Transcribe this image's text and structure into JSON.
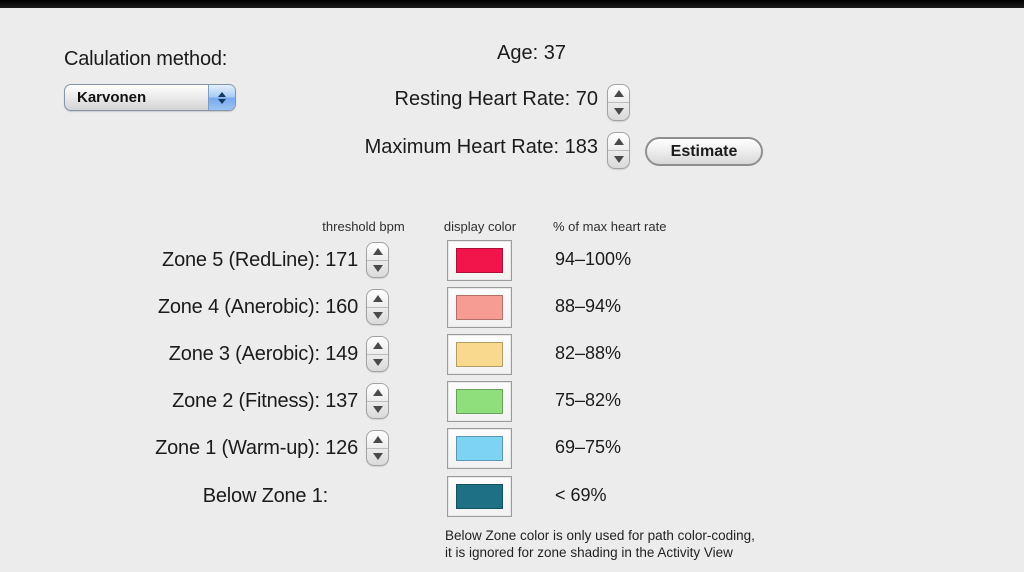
{
  "window": {
    "background_color": "#ECECEC",
    "top_bar_color": "#000000"
  },
  "calculation": {
    "label": "Calulation method:",
    "selected_method": "Karvonen"
  },
  "profile": {
    "age_label": "Age: ",
    "age_value": "37",
    "resting_label": "Resting Heart Rate: ",
    "resting_value": "70",
    "max_label": "Maximum Heart Rate: ",
    "max_value": "183",
    "estimate_button_label": "Estimate"
  },
  "table": {
    "headers": {
      "threshold": "threshold bpm",
      "color": "display color",
      "percent": "% of max heart rate"
    },
    "zones": [
      {
        "label": "Zone 5 (RedLine): ",
        "threshold": "171",
        "color": "#F2154B",
        "percent": "94–100%"
      },
      {
        "label": "Zone 4 (Anerobic): ",
        "threshold": "160",
        "color": "#F79C92",
        "percent": "88–94%"
      },
      {
        "label": "Zone 3 (Aerobic): ",
        "threshold": "149",
        "color": "#F8D98E",
        "percent": "82–88%"
      },
      {
        "label": "Zone 2 (Fitness): ",
        "threshold": "137",
        "color": "#8FE07D",
        "percent": "75–82%"
      },
      {
        "label": "Zone 1 (Warm-up): ",
        "threshold": "126",
        "color": "#7DD3F4",
        "percent": "69–75%"
      },
      {
        "label": "Below Zone 1:",
        "threshold": "",
        "color": "#1E7085",
        "percent": "< 69%"
      }
    ]
  },
  "footnote": {
    "line1": "Below Zone color is only used for path color-coding,",
    "line2": "it is ignored for zone shading in the Activity View"
  }
}
